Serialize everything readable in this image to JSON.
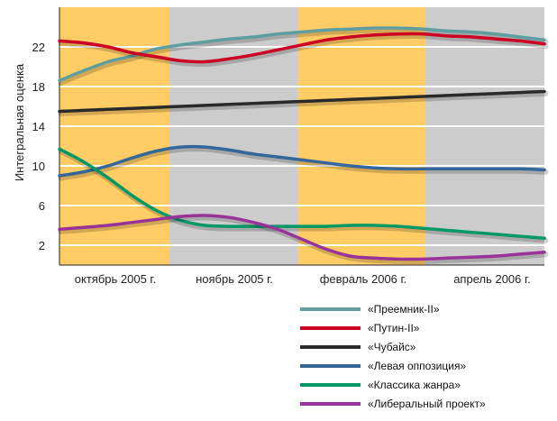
{
  "chart_data": {
    "type": "line",
    "ylabel": "Интегральная оценка",
    "categories": [
      "октябрь 2005 г.",
      "ноябрь 2005 г.",
      "февраль 2006 г.",
      "апрель 2006 г."
    ],
    "y_ticks": [
      2,
      6,
      10,
      14,
      18,
      22
    ],
    "ylim": [
      0,
      26
    ],
    "grid": "horizontal",
    "legend_position": "bottom-right",
    "background_bands": [
      "#ffcc66",
      "#cccccc",
      "#ffcc66",
      "#cccccc"
    ],
    "x": [
      0,
      0.5,
      1,
      1.5,
      2,
      2.5,
      3,
      3.5,
      4,
      4.5,
      5,
      5.5,
      6,
      6.5,
      7,
      7.5,
      8,
      8.5,
      9,
      9.5,
      10
    ],
    "series": [
      {
        "name": "«Преемник-II»",
        "color": "#5f9ea0",
        "values": [
          18.6,
          19.6,
          20.5,
          21.1,
          21.8,
          22.2,
          22.5,
          22.8,
          23.0,
          23.3,
          23.5,
          23.7,
          23.8,
          23.9,
          23.9,
          23.8,
          23.6,
          23.5,
          23.3,
          23.0,
          22.7
        ]
      },
      {
        "name": "«Путин-II»",
        "color": "#cc0022",
        "values": [
          22.6,
          22.4,
          22.0,
          21.4,
          21.0,
          20.6,
          20.5,
          20.8,
          21.2,
          21.7,
          22.2,
          22.7,
          23.0,
          23.2,
          23.3,
          23.3,
          23.1,
          23.0,
          22.8,
          22.6,
          22.3
        ]
      },
      {
        "name": "«Чубайс»",
        "color": "#2a2a2a",
        "values": [
          15.5,
          15.6,
          15.7,
          15.8,
          15.9,
          16.0,
          16.1,
          16.2,
          16.3,
          16.4,
          16.5,
          16.6,
          16.7,
          16.8,
          16.9,
          17.0,
          17.1,
          17.2,
          17.3,
          17.4,
          17.5
        ]
      },
      {
        "name": "«Левая оппозиция»",
        "color": "#336699",
        "values": [
          9.0,
          9.4,
          10.0,
          10.8,
          11.5,
          11.9,
          11.9,
          11.6,
          11.2,
          10.9,
          10.6,
          10.3,
          10.0,
          9.8,
          9.7,
          9.7,
          9.7,
          9.7,
          9.7,
          9.7,
          9.6
        ]
      },
      {
        "name": "«Классика жанра»",
        "color": "#009966",
        "values": [
          11.7,
          10.4,
          8.8,
          7.0,
          5.5,
          4.5,
          4.0,
          3.9,
          3.9,
          3.9,
          3.9,
          3.9,
          4.0,
          4.0,
          3.9,
          3.7,
          3.5,
          3.3,
          3.1,
          2.9,
          2.7
        ]
      },
      {
        "name": "«Либеральный проект»",
        "color": "#993399",
        "values": [
          3.6,
          3.8,
          4.0,
          4.3,
          4.6,
          4.9,
          5.0,
          4.8,
          4.3,
          3.6,
          2.6,
          1.6,
          0.9,
          0.7,
          0.6,
          0.6,
          0.7,
          0.8,
          0.9,
          1.1,
          1.3
        ]
      }
    ]
  }
}
